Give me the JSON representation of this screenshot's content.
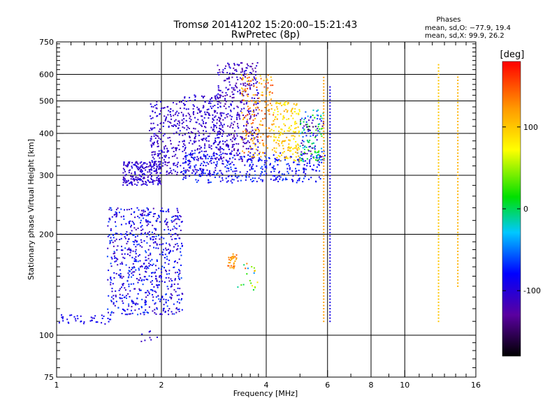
{
  "chart_data": {
    "type": "scatter",
    "title": "Tromsø 20141202 15:20:00–15:21:43",
    "subtitle": "RwPretec (8p)",
    "xlabel": "Frequency [MHz]",
    "ylabel": "Stationary phase Virtual Height [km]",
    "x_scale": "log",
    "y_scale": "log",
    "xlim": [
      1,
      16
    ],
    "ylim": [
      75,
      750
    ],
    "x_ticks": [
      "1",
      "2",
      "4",
      "6",
      "8",
      "10",
      "16"
    ],
    "y_ticks": [
      "75",
      "100",
      "200",
      "300",
      "400",
      "500",
      "600",
      "750"
    ],
    "grid": true,
    "phases_box": {
      "title": "Phases",
      "line_o": "mean, sd,O:  −77.9, 19.4",
      "line_x": "mean, sd,X:  99.9, 26.2"
    },
    "colorbar": {
      "label": "[deg]",
      "range": [
        -180,
        180
      ],
      "ticks": [
        "100",
        "0",
        "-100"
      ],
      "tick_values": [
        100,
        0,
        -100
      ]
    },
    "clusters": [
      {
        "x": [
          1.0,
          1.45
        ],
        "y": [
          108,
          115
        ],
        "phase": [
          -100,
          -80
        ],
        "n": 40
      },
      {
        "x": [
          1.4,
          2.3
        ],
        "y": [
          115,
          240
        ],
        "phase": [
          -120,
          -60
        ],
        "n": 700
      },
      {
        "x": [
          1.55,
          2.0
        ],
        "y": [
          280,
          330
        ],
        "phase": [
          -120,
          -90
        ],
        "n": 220
      },
      {
        "x": [
          1.85,
          2.3
        ],
        "y": [
          300,
          500
        ],
        "phase": [
          -120,
          -90
        ],
        "n": 220
      },
      {
        "x": [
          2.3,
          3.0
        ],
        "y": [
          300,
          520
        ],
        "phase": [
          -120,
          -90
        ],
        "n": 320
      },
      {
        "x": [
          2.9,
          3.8
        ],
        "y": [
          330,
          650
        ],
        "phase": [
          -130,
          -90
        ],
        "n": 360
      },
      {
        "x": [
          2.3,
          5.8
        ],
        "y": [
          285,
          350
        ],
        "phase": [
          -100,
          -60
        ],
        "n": 350
      },
      {
        "x": [
          3.4,
          4.2
        ],
        "y": [
          340,
          600
        ],
        "phase": [
          90,
          160
        ],
        "n": 170
      },
      {
        "x": [
          4.2,
          5.0
        ],
        "y": [
          330,
          500
        ],
        "phase": [
          70,
          120
        ],
        "n": 170
      },
      {
        "x": [
          5.0,
          5.9
        ],
        "y": [
          330,
          470
        ],
        "phase": [
          -150,
          40
        ],
        "n": 150
      },
      {
        "x": [
          3.1,
          3.3
        ],
        "y": [
          158,
          175
        ],
        "phase": [
          110,
          150
        ],
        "n": 30
      },
      {
        "x": [
          3.3,
          3.8
        ],
        "y": [
          135,
          165
        ],
        "phase": [
          -80,
          150
        ],
        "n": 20
      },
      {
        "x": [
          1.75,
          1.95
        ],
        "y": [
          95,
          103
        ],
        "phase": [
          -120,
          -90
        ],
        "n": 8
      }
    ],
    "vertical_streaks": [
      {
        "x": 12.5,
        "y": [
          110,
          650
        ],
        "phase": 100
      },
      {
        "x": 5.85,
        "y": [
          110,
          600
        ],
        "phase": 120
      },
      {
        "x": 6.1,
        "y": [
          110,
          560
        ],
        "phase": -90
      },
      {
        "x": 14.2,
        "y": [
          140,
          600
        ],
        "phase": 110
      }
    ]
  }
}
